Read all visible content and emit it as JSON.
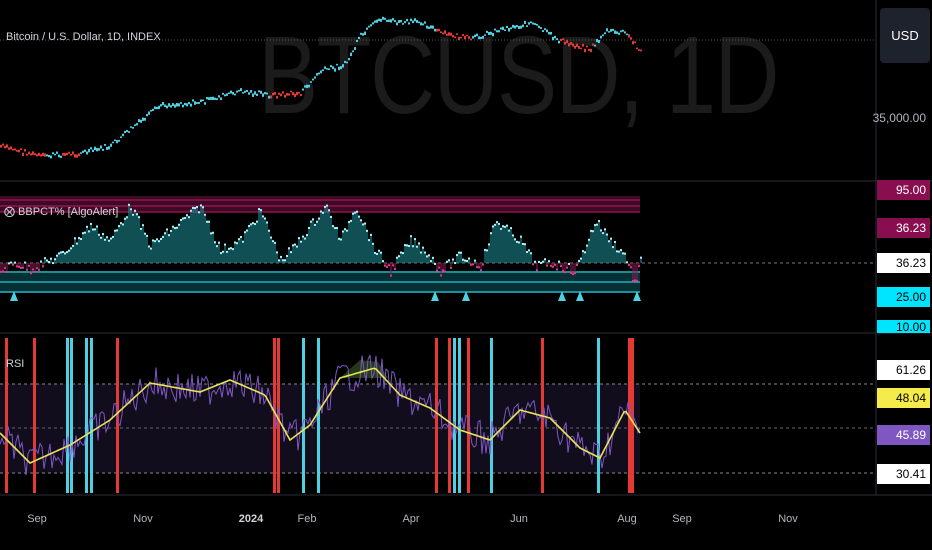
{
  "symbol_title": "Bitcoin / U.S. Dollar, 1D, INDEX",
  "watermark": "BTCUSD, 1D",
  "currency_button": "USD",
  "price_axis": {
    "label_35000": "35,000.00"
  },
  "bbpct": {
    "title": "⨂ BBPCT% [AlgoAlert]",
    "tags": {
      "t95": "95.00",
      "t36a": "36.23",
      "t36b": "36.23",
      "t25": "25.00",
      "t10": "10.00"
    }
  },
  "rsi": {
    "title": "RSI",
    "tags": {
      "t61": "61.26",
      "t48": "48.04",
      "t45": "45.89",
      "t30": "30.41"
    }
  },
  "x_axis": [
    "Sep",
    "Nov",
    "2024",
    "Feb",
    "Apr",
    "Jun",
    "Aug",
    "Sep",
    "Nov"
  ],
  "colors": {
    "bull": "#4dd0e1",
    "bear": "#e53935",
    "rsi_ma": "#e8e35a",
    "rsi_line": "#7e57c2",
    "bb_band": "#880e4f",
    "bb_low": "#26c6da",
    "bg": "#000000"
  }
}
